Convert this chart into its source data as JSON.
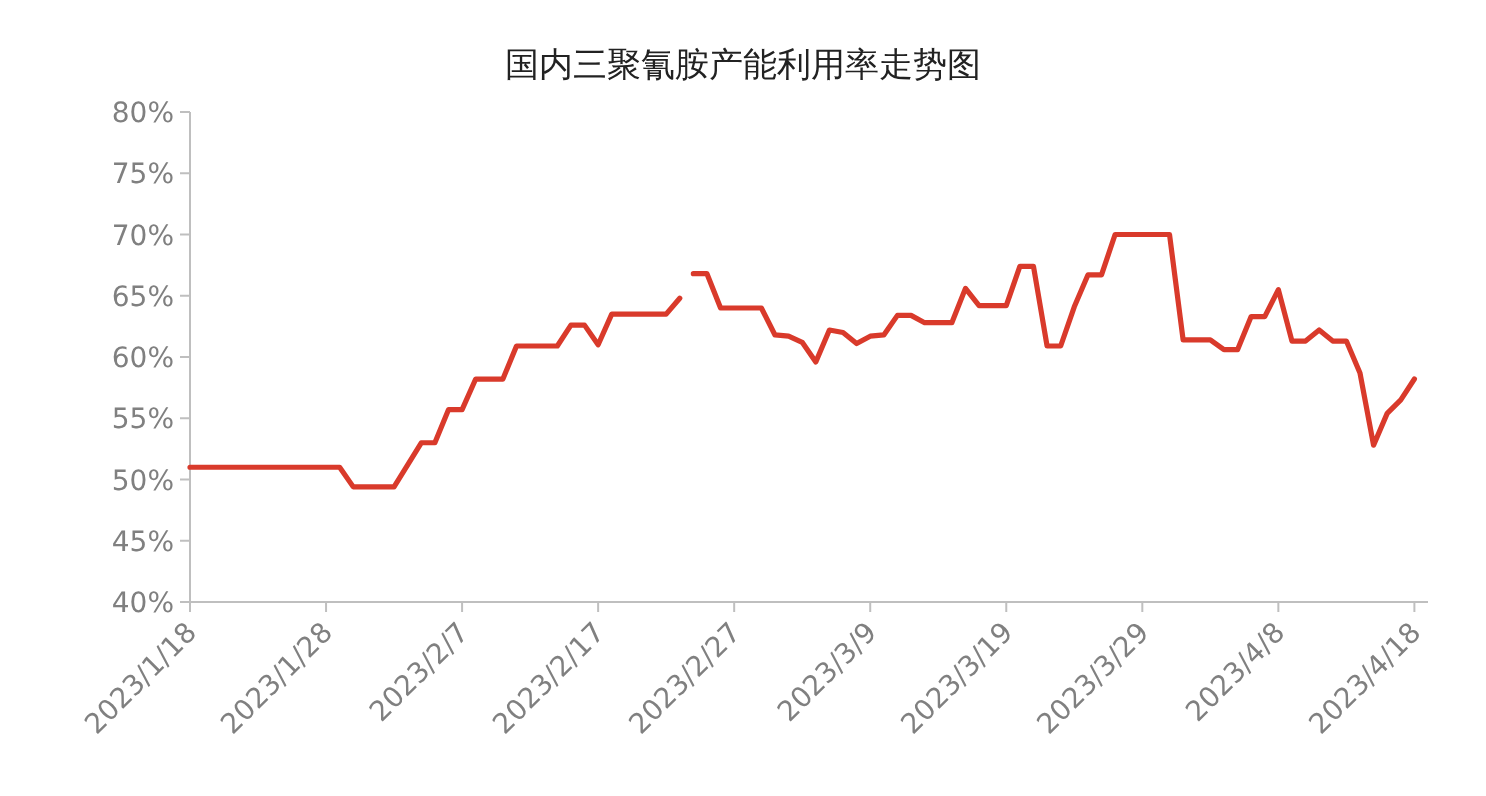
{
  "chart_data": {
    "type": "line",
    "title": "国内三聚氰胺产能利用率走势图",
    "xlim": [
      "2023-01-18",
      "2023-04-19"
    ],
    "xticks": [
      {
        "value": "2023-01-18",
        "label": "2023/1/18"
      },
      {
        "value": "2023-01-28",
        "label": "2023/1/28"
      },
      {
        "value": "2023-02-07",
        "label": "2023/2/7"
      },
      {
        "value": "2023-02-17",
        "label": "2023/2/17"
      },
      {
        "value": "2023-02-27",
        "label": "2023/2/27"
      },
      {
        "value": "2023-03-09",
        "label": "2023/3/9"
      },
      {
        "value": "2023-03-19",
        "label": "2023/3/19"
      },
      {
        "value": "2023-03-29",
        "label": "2023/3/29"
      },
      {
        "value": "2023-04-08",
        "label": "2023/4/8"
      },
      {
        "value": "2023-04-18",
        "label": "2023/4/18"
      }
    ],
    "ylim": [
      40,
      80
    ],
    "yticks": [
      {
        "value": 40,
        "label": "40%"
      },
      {
        "value": 45,
        "label": "45%"
      },
      {
        "value": 50,
        "label": "50%"
      },
      {
        "value": 55,
        "label": "55%"
      },
      {
        "value": 60,
        "label": "60%"
      },
      {
        "value": 65,
        "label": "65%"
      },
      {
        "value": 70,
        "label": "70%"
      },
      {
        "value": 75,
        "label": "75%"
      },
      {
        "value": 80,
        "label": "80%"
      }
    ],
    "grid": false,
    "marker": "none",
    "line_style": "solid",
    "series": [
      {
        "color": "#d93a2b",
        "x": [
          "2023-01-18",
          "2023-01-29",
          "2023-01-30",
          "2023-02-02",
          "2023-02-04",
          "2023-02-05",
          "2023-02-06",
          "2023-02-07",
          "2023-02-08",
          "2023-02-10",
          "2023-02-11",
          "2023-02-14",
          "2023-02-15",
          "2023-02-16",
          "2023-02-17",
          "2023-02-18",
          "2023-02-22",
          "2023-02-23",
          "2023-02-23T12:00",
          "2023-02-24",
          "2023-02-25",
          "2023-02-26",
          "2023-03-01",
          "2023-03-02",
          "2023-03-03",
          "2023-03-04",
          "2023-03-05",
          "2023-03-06",
          "2023-03-07",
          "2023-03-08",
          "2023-03-09",
          "2023-03-10",
          "2023-03-11",
          "2023-03-12",
          "2023-03-13",
          "2023-03-15",
          "2023-03-16",
          "2023-03-17",
          "2023-03-19",
          "2023-03-20",
          "2023-03-21",
          "2023-03-22",
          "2023-03-23",
          "2023-03-24",
          "2023-03-25",
          "2023-03-26",
          "2023-03-27",
          "2023-03-31",
          "2023-04-01",
          "2023-04-03",
          "2023-04-04",
          "2023-04-05",
          "2023-04-06",
          "2023-04-07",
          "2023-04-08",
          "2023-04-09",
          "2023-04-10",
          "2023-04-11",
          "2023-04-12",
          "2023-04-13",
          "2023-04-14",
          "2023-04-15",
          "2023-04-16",
          "2023-04-17",
          "2023-04-18"
        ],
        "values": [
          51.0,
          51.0,
          49.4,
          49.4,
          53.0,
          53.0,
          55.7,
          55.7,
          58.2,
          58.2,
          60.9,
          60.9,
          62.6,
          62.6,
          61.0,
          63.5,
          63.5,
          64.8,
          null,
          66.8,
          66.8,
          64.0,
          64.0,
          61.8,
          61.7,
          61.2,
          59.6,
          62.2,
          62.0,
          61.1,
          61.7,
          61.8,
          63.4,
          63.4,
          62.8,
          62.8,
          65.6,
          64.2,
          64.2,
          67.4,
          67.4,
          60.9,
          60.9,
          64.1,
          66.7,
          66.7,
          70.0,
          70.0,
          61.4,
          61.4,
          60.6,
          60.6,
          63.3,
          63.3,
          65.5,
          61.3,
          61.3,
          62.2,
          61.3,
          61.3,
          58.7,
          52.8,
          55.4,
          56.5,
          58.2
        ]
      }
    ]
  }
}
